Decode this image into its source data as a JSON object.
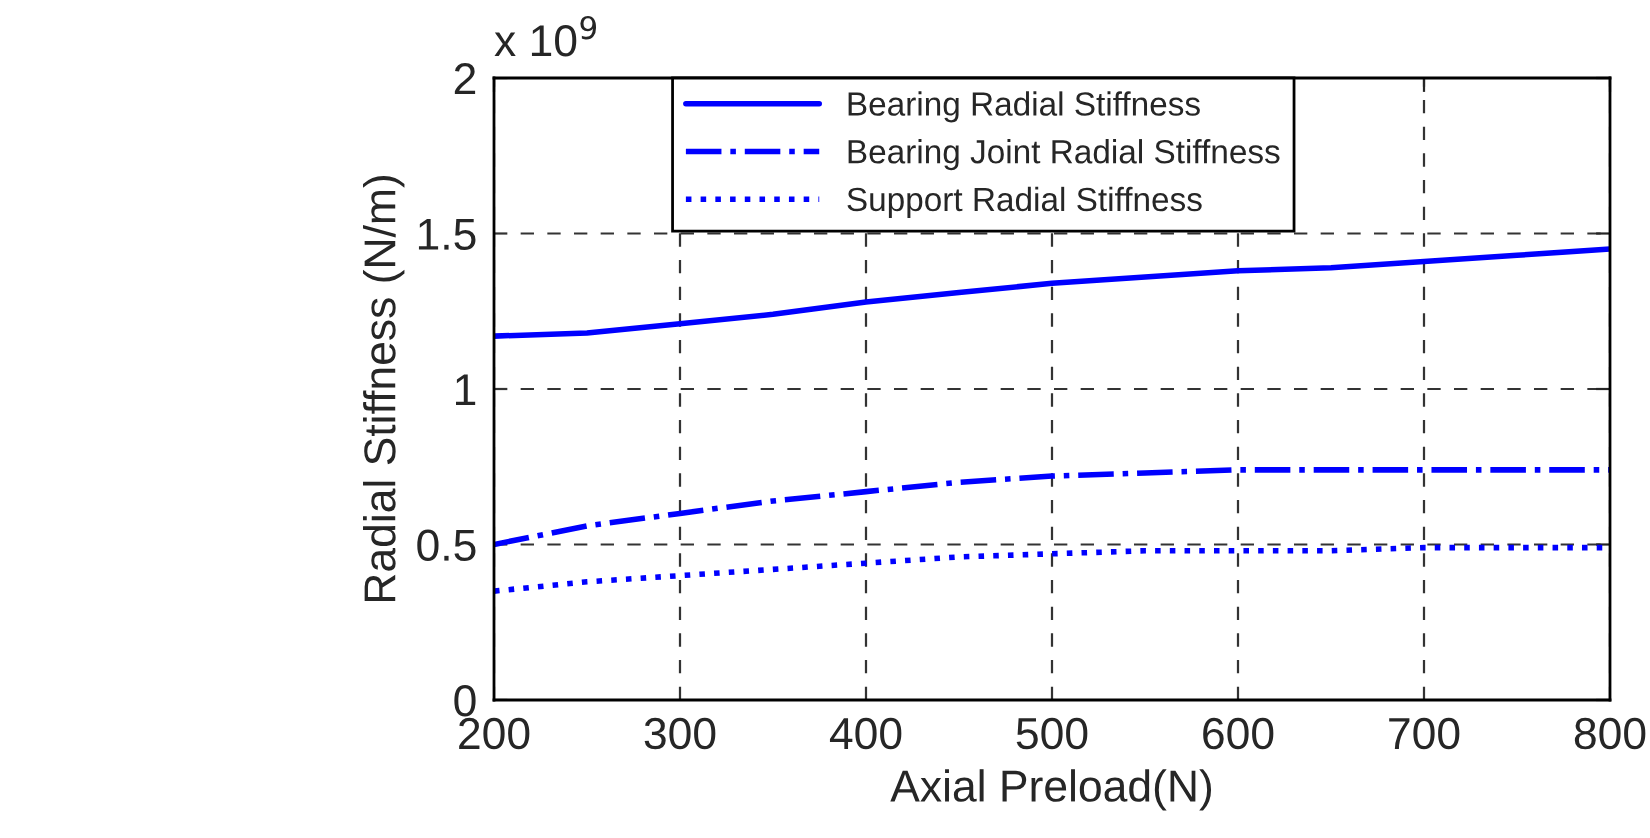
{
  "chart_data": {
    "type": "line",
    "xlabel": "Axial Preload(N)",
    "ylabel": "Radial Stiffness (N/m)",
    "annotations": [
      "x 10$^{9}$"
    ],
    "x": [
      200,
      250,
      300,
      350,
      400,
      450,
      500,
      550,
      600,
      650,
      700,
      750,
      800
    ],
    "series": [
      {
        "name": "Bearing Radial Stiffness",
        "color": "#0000ff",
        "line_style": "solid",
        "values": [
          1.17,
          1.18,
          1.21,
          1.24,
          1.28,
          1.31,
          1.34,
          1.36,
          1.38,
          1.39,
          1.41,
          1.43,
          1.45
        ]
      },
      {
        "name": "Bearing Joint Radial Stiffness",
        "color": "#0000ff",
        "line_style": "dashdot",
        "values": [
          0.5,
          0.56,
          0.6,
          0.64,
          0.67,
          0.7,
          0.72,
          0.73,
          0.74,
          0.74,
          0.74,
          0.74,
          0.74
        ]
      },
      {
        "name": "Support Radial Stiffness",
        "color": "#0000ff",
        "line_style": "dotted",
        "values": [
          0.35,
          0.38,
          0.4,
          0.42,
          0.44,
          0.46,
          0.47,
          0.48,
          0.48,
          0.48,
          0.49,
          0.49,
          0.49
        ]
      }
    ],
    "xlim": [
      200,
      800
    ],
    "xticks": [
      200,
      300,
      400,
      500,
      600,
      700,
      800
    ],
    "ylim": [
      0,
      2
    ],
    "yticks": [
      0,
      0.5,
      1,
      1.5,
      2
    ],
    "grid": true,
    "legend": "top left",
    "marker": "none"
  }
}
